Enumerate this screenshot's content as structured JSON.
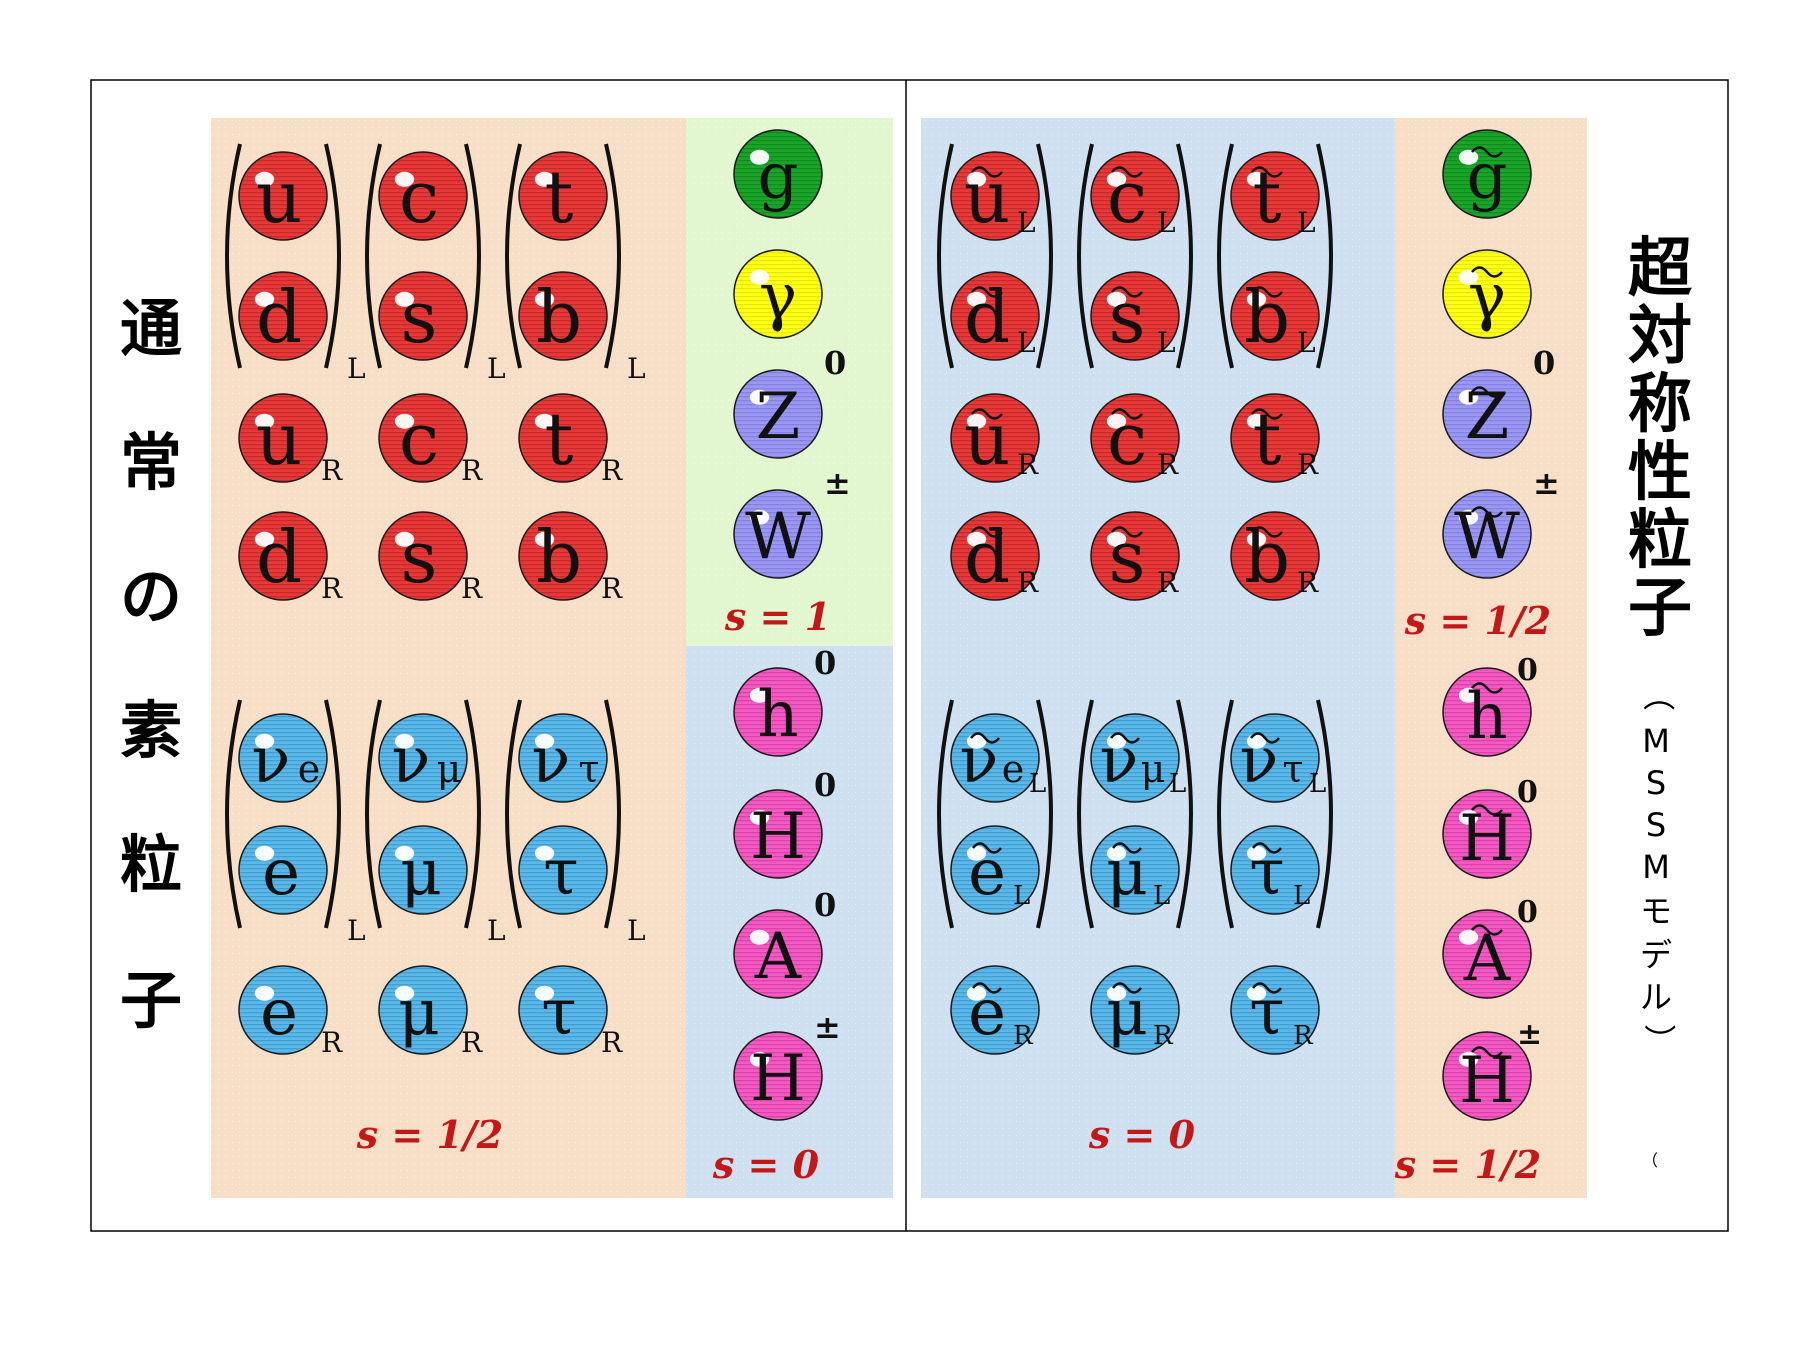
{
  "colors": {
    "quark": "#e8393a",
    "lepton": "#5cb8e8",
    "gluon": "#1aa52a",
    "photon": "#ffff18",
    "weak": "#9b98f2",
    "higgs": "#f25cc2",
    "peach": "#f7dfc7",
    "light_blue": "#cfe0f0",
    "light_green": "#e2f7cf",
    "spin_text": "#c41818"
  },
  "left": {
    "title_chars": [
      "通",
      "常",
      "の",
      "素",
      "粒",
      "子"
    ],
    "quarks_left": [
      {
        "symbol": "u",
        "sub": ""
      },
      {
        "symbol": "c",
        "sub": ""
      },
      {
        "symbol": "t",
        "sub": ""
      },
      {
        "symbol": "d",
        "sub": ""
      },
      {
        "symbol": "s",
        "sub": ""
      },
      {
        "symbol": "b",
        "sub": ""
      }
    ],
    "doublet_sub": "L",
    "quarks_right": [
      {
        "symbol": "u",
        "sub": "R"
      },
      {
        "symbol": "c",
        "sub": "R"
      },
      {
        "symbol": "t",
        "sub": "R"
      },
      {
        "symbol": "d",
        "sub": "R"
      },
      {
        "symbol": "s",
        "sub": "R"
      },
      {
        "symbol": "b",
        "sub": "R"
      }
    ],
    "leptons_left": [
      {
        "symbol": "ν",
        "sub": "e"
      },
      {
        "symbol": "ν",
        "sub": "μ"
      },
      {
        "symbol": "ν",
        "sub": "τ"
      },
      {
        "symbol": "e",
        "sub": ""
      },
      {
        "symbol": "μ",
        "sub": ""
      },
      {
        "symbol": "τ",
        "sub": ""
      }
    ],
    "leptons_right": [
      {
        "symbol": "e",
        "sub": "R"
      },
      {
        "symbol": "μ",
        "sub": "R"
      },
      {
        "symbol": "τ",
        "sub": "R"
      }
    ],
    "spin_fermion": "s = 1/2",
    "gauge": [
      {
        "symbol": "g",
        "sup": "",
        "color": "gluon"
      },
      {
        "symbol": "γ",
        "sup": "",
        "color": "photon"
      },
      {
        "symbol": "Z",
        "sup": "0",
        "color": "weak"
      },
      {
        "symbol": "W",
        "sup": "±",
        "color": "weak"
      }
    ],
    "spin_gauge": "s = 1",
    "higgs": [
      {
        "symbol": "h",
        "sup": "0"
      },
      {
        "symbol": "H",
        "sup": "0"
      },
      {
        "symbol": "A",
        "sup": "0"
      },
      {
        "symbol": "H",
        "sup": "±"
      }
    ],
    "spin_higgs": "s = 0"
  },
  "right": {
    "title_chars": [
      "超",
      "対",
      "称",
      "性",
      "粒",
      "子"
    ],
    "subtitle_chars": [
      "（",
      "M",
      "S",
      "S",
      "M",
      "モ",
      "デ",
      "ル",
      "）"
    ],
    "stray_mark": "（",
    "squarks_left": [
      {
        "symbol": "u",
        "sub": "L"
      },
      {
        "symbol": "c",
        "sub": "L"
      },
      {
        "symbol": "t",
        "sub": "L"
      },
      {
        "symbol": "d",
        "sub": "L"
      },
      {
        "symbol": "s",
        "sub": "L"
      },
      {
        "symbol": "b",
        "sub": "L"
      }
    ],
    "squarks_right": [
      {
        "symbol": "u",
        "sub": "R"
      },
      {
        "symbol": "c",
        "sub": "R"
      },
      {
        "symbol": "t",
        "sub": "R"
      },
      {
        "symbol": "d",
        "sub": "R"
      },
      {
        "symbol": "s",
        "sub": "R"
      },
      {
        "symbol": "b",
        "sub": "R"
      }
    ],
    "sleptons_left": [
      {
        "symbol": "ν",
        "sub": "e",
        "sub2": "L"
      },
      {
        "symbol": "ν",
        "sub": "μ",
        "sub2": "L"
      },
      {
        "symbol": "ν",
        "sub": "τ",
        "sub2": "L"
      },
      {
        "symbol": "e",
        "sub": "L",
        "sub2": ""
      },
      {
        "symbol": "μ",
        "sub": "L",
        "sub2": ""
      },
      {
        "symbol": "τ",
        "sub": "L",
        "sub2": ""
      }
    ],
    "sleptons_right": [
      {
        "symbol": "e",
        "sub": "R"
      },
      {
        "symbol": "μ",
        "sub": "R"
      },
      {
        "symbol": "τ",
        "sub": "R"
      }
    ],
    "spin_sfermion": "s = 0",
    "gauginos": [
      {
        "symbol": "g",
        "sup": "",
        "color": "gluon"
      },
      {
        "symbol": "γ",
        "sup": "",
        "color": "photon"
      },
      {
        "symbol": "Z",
        "sup": "0",
        "color": "weak"
      },
      {
        "symbol": "W",
        "sup": "±",
        "color": "weak"
      }
    ],
    "spin_gaugino": "s = 1/2",
    "higgsinos": [
      {
        "symbol": "h",
        "sup": "0"
      },
      {
        "symbol": "H",
        "sup": "0"
      },
      {
        "symbol": "A",
        "sup": "0"
      },
      {
        "symbol": "H",
        "sup": "±"
      }
    ],
    "spin_higgsino": "s = 1/2"
  }
}
